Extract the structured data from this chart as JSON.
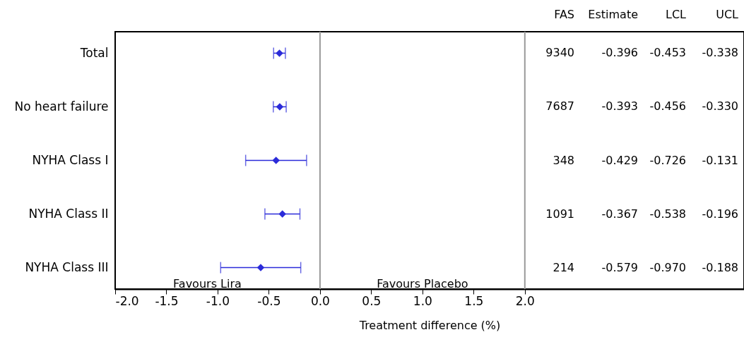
{
  "chart_data": {
    "type": "scatter",
    "orientation": "horizontal",
    "xlabel": "Treatment difference (%)",
    "categories": [
      "Total",
      "No heart failure",
      "NYHA Class I",
      "NYHA Class II",
      "NYHA Class III"
    ],
    "values": [
      -0.396,
      -0.393,
      -0.429,
      -0.367,
      -0.579
    ],
    "errors": [
      [
        -0.453,
        -0.338
      ],
      [
        -0.456,
        -0.33
      ],
      [
        -0.726,
        -0.131
      ],
      [
        -0.538,
        -0.196
      ],
      [
        -0.97,
        -0.188
      ]
    ],
    "color": "#2b2bd9",
    "marker": "diamond",
    "grid": false,
    "xlim": [
      -2,
      4.14
    ],
    "xticks": [
      {
        "value": -2,
        "label": "-2.0"
      },
      {
        "value": -1.5,
        "label": "-1.5"
      },
      {
        "value": -1,
        "label": "-1.0"
      },
      {
        "value": -0.5,
        "label": "-0.5"
      },
      {
        "value": 0,
        "label": "0.0"
      },
      {
        "value": 0.5,
        "label": "0.5"
      },
      {
        "value": 1,
        "label": "1.0"
      },
      {
        "value": 1.5,
        "label": "1.5"
      },
      {
        "value": 2,
        "label": "2.0"
      }
    ],
    "ref_lines": [
      {
        "axis": "x",
        "value": 0,
        "color": "#999999"
      },
      {
        "axis": "x",
        "value": 2,
        "color": "#999999"
      }
    ],
    "annotations": [
      "FAS",
      "Estimate",
      "LCL",
      "UCL",
      "9340",
      "-0.396",
      "-0.453",
      "-0.338",
      "7687",
      "-0.393",
      "-0.456",
      "-0.330",
      "348",
      "-0.429",
      "-0.726",
      "-0.131",
      "1091",
      "-0.367",
      "-0.538",
      "-0.196",
      "214",
      "-0.579",
      "-0.970",
      "-0.188",
      "Favours Lira",
      "Favours Placebo"
    ]
  }
}
